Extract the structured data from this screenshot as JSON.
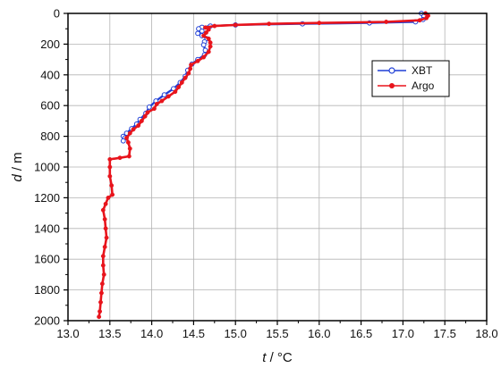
{
  "chart_data": {
    "type": "line",
    "xlabel": "t / °C",
    "xlabel_var": "t",
    "xlabel_unit": " / °C",
    "ylabel": "d / m",
    "ylabel_var": "d",
    "ylabel_unit": " / m",
    "xlim": [
      13.0,
      18.0
    ],
    "ylim": [
      0,
      2000
    ],
    "y_inverted": true,
    "x_ticks": [
      13.0,
      13.5,
      14.0,
      14.5,
      15.0,
      15.5,
      16.0,
      16.5,
      17.0,
      17.5,
      18.0
    ],
    "x_tick_labels": [
      "13.0",
      "13.5",
      "14.0",
      "14.5",
      "15.0",
      "15.5",
      "16.0",
      "16.5",
      "17.0",
      "17.5",
      "18.0"
    ],
    "y_ticks": [
      0,
      200,
      400,
      600,
      800,
      1000,
      1200,
      1400,
      1600,
      1800,
      2000
    ],
    "y_tick_labels": [
      "0",
      "200",
      "400",
      "600",
      "800",
      "1000",
      "1200",
      "1400",
      "1600",
      "1800",
      "2000"
    ],
    "grid": true,
    "legend_position": "upper-right",
    "series": [
      {
        "name": "XBT",
        "color": "#1f3fd6",
        "marker": "open-circle",
        "points": [
          [
            17.22,
            0
          ],
          [
            17.25,
            20
          ],
          [
            17.24,
            40
          ],
          [
            17.15,
            55
          ],
          [
            16.6,
            62
          ],
          [
            15.8,
            68
          ],
          [
            15.0,
            75
          ],
          [
            14.7,
            82
          ],
          [
            14.6,
            90
          ],
          [
            14.56,
            100
          ],
          [
            14.6,
            115
          ],
          [
            14.55,
            130
          ],
          [
            14.6,
            145
          ],
          [
            14.66,
            165
          ],
          [
            14.63,
            185
          ],
          [
            14.62,
            205
          ],
          [
            14.64,
            240
          ],
          [
            14.63,
            270
          ],
          [
            14.55,
            300
          ],
          [
            14.48,
            330
          ],
          [
            14.43,
            370
          ],
          [
            14.4,
            410
          ],
          [
            14.34,
            450
          ],
          [
            14.26,
            490
          ],
          [
            14.15,
            530
          ],
          [
            14.05,
            570
          ],
          [
            13.97,
            610
          ],
          [
            13.93,
            650
          ],
          [
            13.86,
            690
          ],
          [
            13.82,
            720
          ],
          [
            13.76,
            750
          ],
          [
            13.7,
            780
          ],
          [
            13.66,
            800
          ],
          [
            13.68,
            810
          ],
          [
            13.66,
            830
          ]
        ]
      },
      {
        "name": "Argo",
        "color": "#e8141c",
        "marker": "filled-circle",
        "points": [
          [
            17.27,
            0
          ],
          [
            17.3,
            15
          ],
          [
            17.28,
            30
          ],
          [
            17.2,
            45
          ],
          [
            16.8,
            55
          ],
          [
            16.0,
            62
          ],
          [
            15.4,
            68
          ],
          [
            15.0,
            75
          ],
          [
            14.75,
            82
          ],
          [
            14.64,
            92
          ],
          [
            14.68,
            105
          ],
          [
            14.65,
            125
          ],
          [
            14.62,
            145
          ],
          [
            14.68,
            165
          ],
          [
            14.7,
            190
          ],
          [
            14.7,
            215
          ],
          [
            14.68,
            250
          ],
          [
            14.62,
            285
          ],
          [
            14.55,
            310
          ],
          [
            14.47,
            335
          ],
          [
            14.46,
            360
          ],
          [
            14.44,
            390
          ],
          [
            14.4,
            420
          ],
          [
            14.36,
            450
          ],
          [
            14.32,
            480
          ],
          [
            14.28,
            510
          ],
          [
            14.2,
            540
          ],
          [
            14.12,
            570
          ],
          [
            14.06,
            590
          ],
          [
            14.03,
            620
          ],
          [
            13.95,
            645
          ],
          [
            13.92,
            670
          ],
          [
            13.88,
            700
          ],
          [
            13.84,
            730
          ],
          [
            13.78,
            755
          ],
          [
            13.74,
            780
          ],
          [
            13.7,
            810
          ],
          [
            13.72,
            840
          ],
          [
            13.74,
            880
          ],
          [
            13.73,
            930
          ],
          [
            13.62,
            940
          ],
          [
            13.5,
            950
          ],
          [
            13.5,
            1000
          ],
          [
            13.5,
            1060
          ],
          [
            13.52,
            1120
          ],
          [
            13.53,
            1180
          ],
          [
            13.48,
            1200
          ],
          [
            13.45,
            1240
          ],
          [
            13.42,
            1280
          ],
          [
            13.44,
            1340
          ],
          [
            13.45,
            1400
          ],
          [
            13.46,
            1460
          ],
          [
            13.44,
            1520
          ],
          [
            13.42,
            1580
          ],
          [
            13.42,
            1640
          ],
          [
            13.43,
            1700
          ],
          [
            13.41,
            1760
          ],
          [
            13.4,
            1820
          ],
          [
            13.39,
            1880
          ],
          [
            13.38,
            1940
          ],
          [
            13.37,
            1975
          ]
        ]
      }
    ]
  }
}
